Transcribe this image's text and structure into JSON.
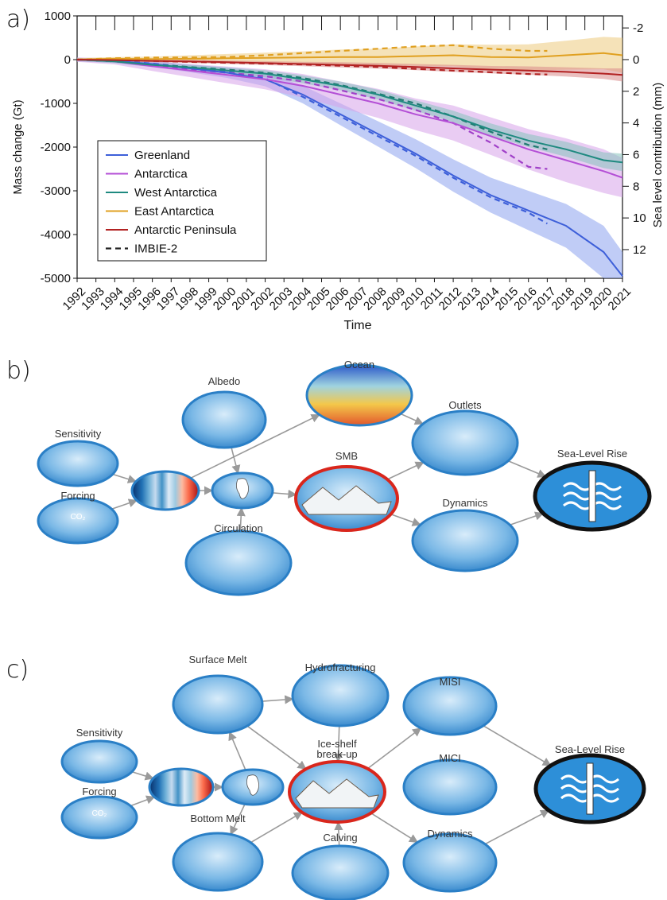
{
  "panel_labels": [
    "a)",
    "b)",
    "c)"
  ],
  "chart_data": {
    "type": "line",
    "y_label": "Mass change (Gt)",
    "x_label": "Time",
    "y2_label": "Sea level contribution (mm)",
    "x": [
      1992,
      1994,
      1996,
      1998,
      2000,
      2002,
      2004,
      2006,
      2008,
      2010,
      2012,
      2014,
      2016,
      2018,
      2020,
      2021
    ],
    "xlim": [
      1992,
      2021
    ],
    "xticks": [
      1992,
      1993,
      1994,
      1995,
      1996,
      1997,
      1998,
      1999,
      2000,
      2001,
      2002,
      2003,
      2004,
      2005,
      2006,
      2007,
      2008,
      2009,
      2010,
      2011,
      2012,
      2013,
      2014,
      2015,
      2016,
      2017,
      2018,
      2019,
      2020,
      2021
    ],
    "ylim": [
      -5000,
      1000
    ],
    "yticks": [
      -5000,
      -4000,
      -3000,
      -2000,
      -1000,
      0,
      1000
    ],
    "y2lim": [
      13.81,
      -2.76
    ],
    "y2ticks": [
      -2,
      0,
      2,
      4,
      6,
      8,
      10,
      12
    ],
    "legend": "lower left",
    "series": [
      {
        "name": "Greenland",
        "color": "#3d5fd9",
        "band_color": "#8da2ee",
        "values": [
          0,
          -30,
          -100,
          -200,
          -300,
          -450,
          -800,
          -1250,
          -1700,
          -2150,
          -2650,
          -3100,
          -3450,
          -3800,
          -4400,
          -4950
        ],
        "lower": [
          -40,
          -80,
          -170,
          -290,
          -420,
          -610,
          -1000,
          -1500,
          -1990,
          -2480,
          -3020,
          -3500,
          -3900,
          -4300,
          -5000,
          -5000
        ],
        "upper": [
          40,
          20,
          -30,
          -110,
          -180,
          -290,
          -600,
          -1000,
          -1410,
          -1820,
          -2280,
          -2700,
          -3000,
          -3300,
          -3800,
          -4400
        ]
      },
      {
        "name": "Antarctica",
        "color": "#b44fd6",
        "band_color": "#d7a3ea",
        "values": [
          0,
          -40,
          -150,
          -250,
          -350,
          -450,
          -600,
          -800,
          -1000,
          -1250,
          -1450,
          -1750,
          -2050,
          -2300,
          -2550,
          -2700
        ],
        "lower": [
          -50,
          -110,
          -260,
          -400,
          -540,
          -680,
          -870,
          -1100,
          -1330,
          -1610,
          -1850,
          -2180,
          -2510,
          -2800,
          -3050,
          -3150
        ],
        "upper": [
          50,
          30,
          -40,
          -100,
          -160,
          -220,
          -330,
          -500,
          -670,
          -890,
          -1050,
          -1320,
          -1590,
          -1800,
          -2050,
          -2250
        ]
      },
      {
        "name": "West Antarctica",
        "color": "#1f8a80",
        "band_color": "#86c2bc",
        "values": [
          0,
          -40,
          -120,
          -180,
          -250,
          -320,
          -450,
          -600,
          -800,
          -1050,
          -1300,
          -1600,
          -1850,
          -2050,
          -2300,
          -2350
        ],
        "lower": [
          -30,
          -80,
          -170,
          -240,
          -320,
          -400,
          -540,
          -700,
          -910,
          -1170,
          -1430,
          -1740,
          -2000,
          -2220,
          -2480,
          -2550
        ],
        "upper": [
          30,
          0,
          -70,
          -120,
          -180,
          -240,
          -360,
          -500,
          -690,
          -930,
          -1170,
          -1460,
          -1700,
          -1880,
          -2120,
          -2150
        ]
      },
      {
        "name": "East Antarctica",
        "color": "#e0a020",
        "band_color": "#ecca7d",
        "values": [
          0,
          20,
          10,
          20,
          30,
          40,
          50,
          60,
          60,
          80,
          100,
          60,
          50,
          100,
          150,
          100
        ],
        "lower": [
          -30,
          -20,
          -50,
          -60,
          -70,
          -80,
          -90,
          -110,
          -130,
          -140,
          -150,
          -220,
          -250,
          -230,
          -220,
          -300
        ],
        "upper": [
          30,
          60,
          70,
          100,
          130,
          160,
          190,
          230,
          250,
          300,
          350,
          340,
          350,
          430,
          520,
          500
        ]
      },
      {
        "name": "Antarctic Peninsula",
        "color": "#b22222",
        "band_color": "#d88a8a",
        "values": [
          0,
          -10,
          -30,
          -40,
          -60,
          -80,
          -100,
          -120,
          -140,
          -170,
          -200,
          -230,
          -250,
          -280,
          -320,
          -350
        ],
        "lower": [
          -20,
          -35,
          -60,
          -75,
          -100,
          -125,
          -150,
          -180,
          -205,
          -240,
          -280,
          -315,
          -345,
          -385,
          -440,
          -500
        ],
        "upper": [
          20,
          15,
          0,
          -5,
          -20,
          -35,
          -50,
          -60,
          -75,
          -100,
          -120,
          -145,
          -155,
          -175,
          -200,
          -200
        ]
      }
    ],
    "reference": {
      "name": "IMBIE-2",
      "color": "#222222",
      "x": [
        1992,
        1994,
        1996,
        1998,
        2000,
        2002,
        2004,
        2006,
        2008,
        2010,
        2012,
        2014,
        2016,
        2017
      ],
      "series": [
        {
          "color": "#3d5fd9",
          "values": [
            0,
            -30,
            -90,
            -180,
            -280,
            -430,
            -850,
            -1300,
            -1750,
            -2200,
            -2700,
            -3150,
            -3500,
            -3750
          ]
        },
        {
          "color": "#a040c8",
          "values": [
            0,
            -40,
            -130,
            -220,
            -300,
            -380,
            -500,
            -700,
            -900,
            -1150,
            -1450,
            -1900,
            -2450,
            -2500
          ]
        },
        {
          "color": "#1f7a70",
          "values": [
            0,
            -40,
            -110,
            -170,
            -230,
            -300,
            -420,
            -580,
            -780,
            -1000,
            -1300,
            -1650,
            -1950,
            -2050
          ]
        },
        {
          "color": "#e0a020",
          "values": [
            0,
            30,
            50,
            50,
            60,
            100,
            150,
            200,
            250,
            300,
            330,
            250,
            200,
            200
          ]
        },
        {
          "color": "#b22222",
          "values": [
            0,
            -10,
            -30,
            -50,
            -70,
            -90,
            -110,
            -140,
            -170,
            -210,
            -250,
            -290,
            -330,
            -340
          ]
        }
      ]
    }
  },
  "diagram_b": {
    "nodes": [
      {
        "label": "Sensitivity"
      },
      {
        "label": "Forcing",
        "icon_text": "CO₂"
      },
      {},
      {},
      {
        "label": "Albedo"
      },
      {
        "label": "Ocean"
      },
      {
        "label": "Circulation"
      },
      {
        "label": "SMB"
      },
      {
        "label": "Outlets"
      },
      {
        "label": "Dynamics"
      },
      {
        "label": "Sea-Level Rise"
      }
    ]
  },
  "diagram_c": {
    "nodes": [
      {
        "label": "Sensitivity"
      },
      {
        "label": "Forcing",
        "icon_text": "CO₂"
      },
      {},
      {},
      {
        "label": "Surface Melt"
      },
      {
        "label": "Hydrofracturing"
      },
      {
        "label_lines": [
          "Ice-shelf",
          "break-up"
        ]
      },
      {
        "label": "MISI"
      },
      {
        "label": "MICI"
      },
      {
        "label": "Bottom Melt"
      },
      {
        "label": "Calving"
      },
      {
        "label": "Dynamics"
      },
      {
        "label": "Sea-Level Rise"
      }
    ]
  }
}
